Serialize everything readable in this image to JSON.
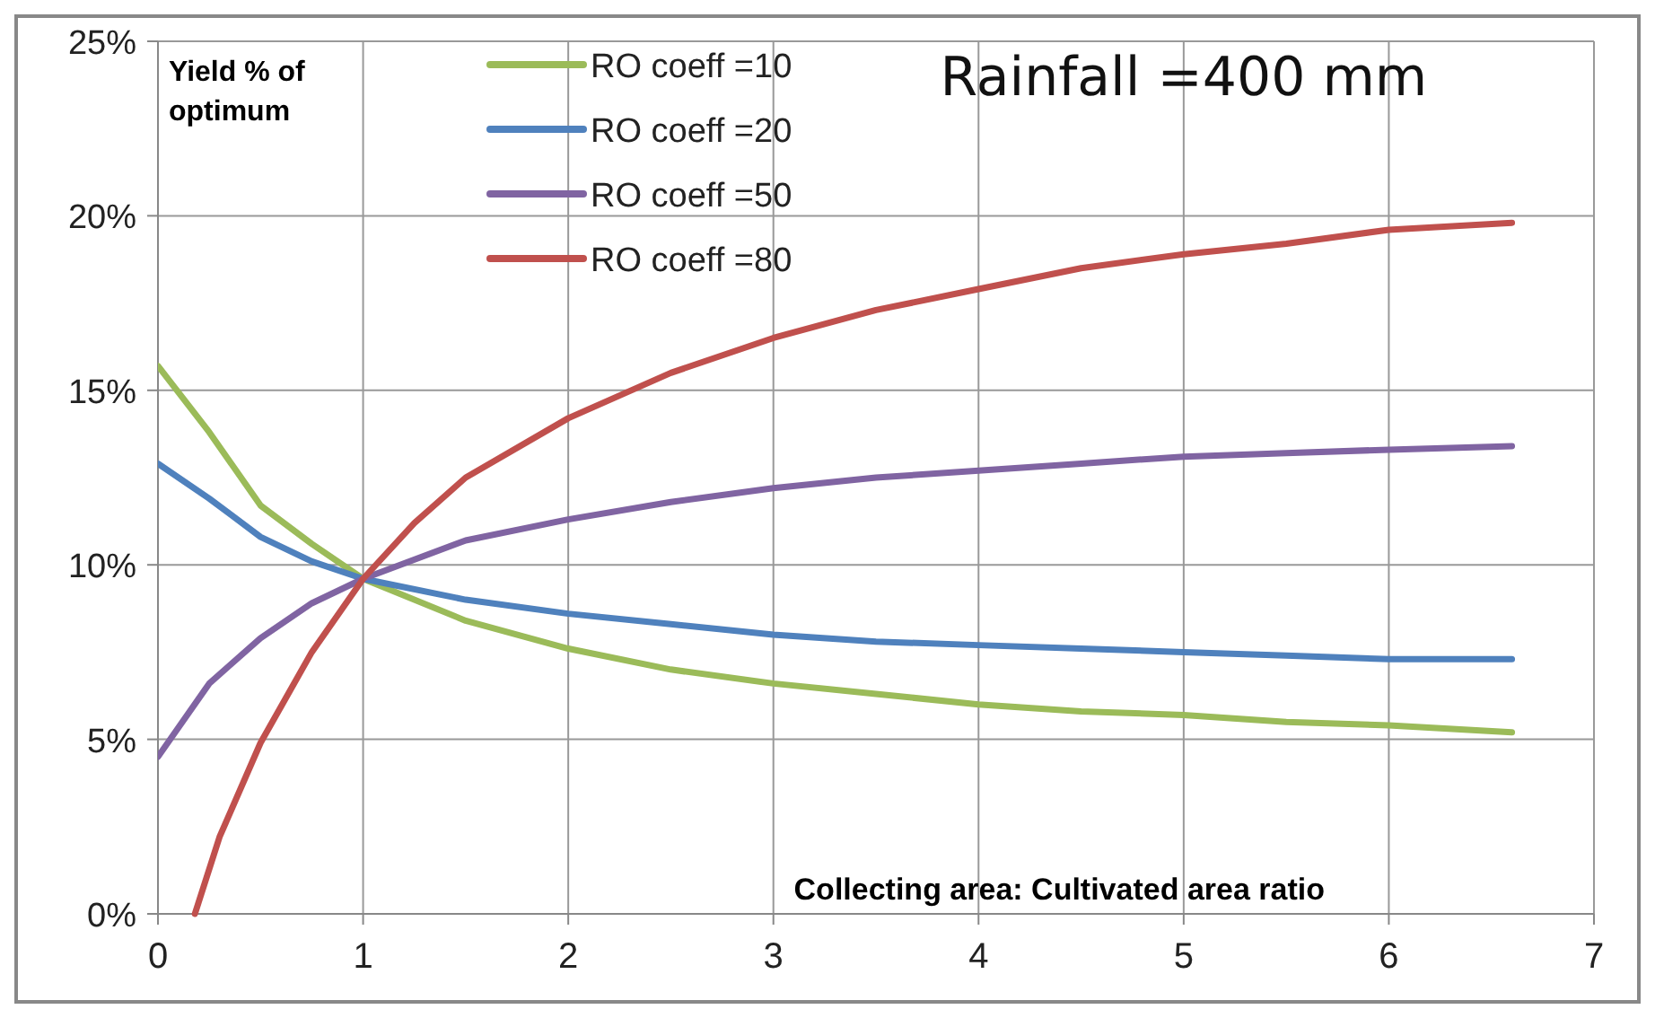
{
  "chart_data": {
    "type": "line",
    "title": "Rainfall =400 mm",
    "ylabel": "Yield % of optimum",
    "xlabel": "Collecting area: Cultivated area ratio",
    "xlim": [
      0,
      7
    ],
    "xticks": [
      0,
      1,
      2,
      3,
      4,
      5,
      6,
      7
    ],
    "ylim": [
      0,
      25
    ],
    "yticks": [
      {
        "value": 0,
        "label": "0%"
      },
      {
        "value": 5,
        "label": "5%"
      },
      {
        "value": 10,
        "label": "10%"
      },
      {
        "value": 15,
        "label": "15%"
      },
      {
        "value": 20,
        "label": "20%"
      },
      {
        "value": 25,
        "label": "25%"
      }
    ],
    "grid": true,
    "legend": "top",
    "marker": "none",
    "line_style": "solid",
    "series": [
      {
        "name": "RO coeff =10",
        "color": "#9bbb59",
        "x": [
          0,
          0.25,
          0.5,
          0.75,
          1,
          1.5,
          2,
          2.5,
          3,
          3.5,
          4,
          4.5,
          5,
          5.5,
          6,
          6.6
        ],
        "values": [
          15.7,
          13.8,
          11.7,
          10.6,
          9.6,
          8.4,
          7.6,
          7.0,
          6.6,
          6.3,
          6.0,
          5.8,
          5.7,
          5.5,
          5.4,
          5.2
        ]
      },
      {
        "name": "RO coeff =20",
        "color": "#4f81bd",
        "x": [
          0,
          0.25,
          0.5,
          0.75,
          1,
          1.5,
          2,
          2.5,
          3,
          3.5,
          4,
          4.5,
          5,
          5.5,
          6,
          6.6
        ],
        "values": [
          12.9,
          11.9,
          10.8,
          10.1,
          9.6,
          9.0,
          8.6,
          8.3,
          8.0,
          7.8,
          7.7,
          7.6,
          7.5,
          7.4,
          7.3,
          7.3
        ]
      },
      {
        "name": "RO coeff =50",
        "color": "#8064a2",
        "x": [
          0,
          0.25,
          0.5,
          0.75,
          1,
          1.5,
          2,
          2.5,
          3,
          3.5,
          4,
          4.5,
          5,
          5.5,
          6,
          6.6
        ],
        "values": [
          4.5,
          6.6,
          7.9,
          8.9,
          9.6,
          10.7,
          11.3,
          11.8,
          12.2,
          12.5,
          12.7,
          12.9,
          13.1,
          13.2,
          13.3,
          13.4
        ]
      },
      {
        "name": "RO coeff =80",
        "color": "#c0504d",
        "x": [
          0.18,
          0.3,
          0.5,
          0.75,
          1,
          1.25,
          1.5,
          2,
          2.5,
          3,
          3.5,
          4,
          4.5,
          5,
          5.5,
          6,
          6.6
        ],
        "values": [
          0,
          2.2,
          4.9,
          7.5,
          9.6,
          11.2,
          12.5,
          14.2,
          15.5,
          16.5,
          17.3,
          17.9,
          18.5,
          18.9,
          19.2,
          19.6,
          19.8
        ]
      }
    ]
  }
}
